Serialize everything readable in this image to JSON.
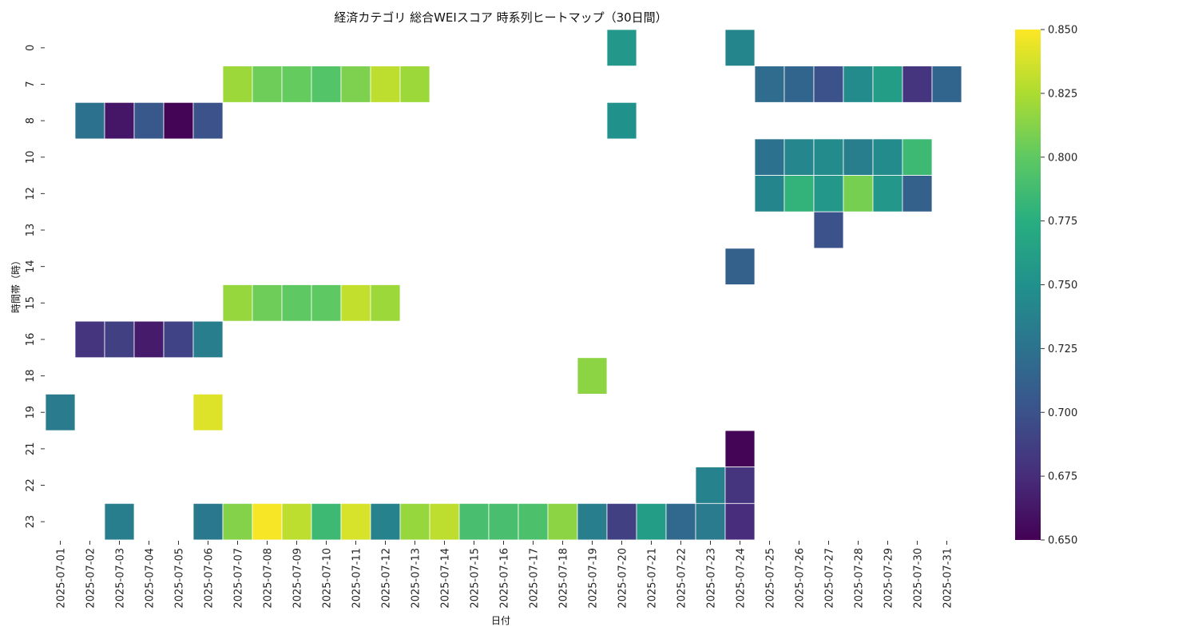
{
  "chart_data": {
    "type": "heatmap",
    "title": "経済カテゴリ 総合WEIスコア 時系列ヒートマップ（30日間）",
    "xlabel": "日付",
    "ylabel": "時間帯（時）",
    "colormap": "viridis",
    "colorbar": {
      "min": 0.65,
      "max": 0.85,
      "ticks": [
        "0.650",
        "0.675",
        "0.700",
        "0.725",
        "0.750",
        "0.775",
        "0.800",
        "0.825",
        "0.850"
      ]
    },
    "x": [
      "2025-07-01",
      "2025-07-02",
      "2025-07-03",
      "2025-07-04",
      "2025-07-05",
      "2025-07-06",
      "2025-07-07",
      "2025-07-08",
      "2025-07-09",
      "2025-07-10",
      "2025-07-11",
      "2025-07-12",
      "2025-07-13",
      "2025-07-14",
      "2025-07-15",
      "2025-07-16",
      "2025-07-17",
      "2025-07-18",
      "2025-07-19",
      "2025-07-20",
      "2025-07-21",
      "2025-07-22",
      "2025-07-23",
      "2025-07-24",
      "2025-07-25",
      "2025-07-26",
      "2025-07-27",
      "2025-07-28",
      "2025-07-29",
      "2025-07-30",
      "2025-07-31"
    ],
    "y": [
      "0",
      "7",
      "8",
      "10",
      "12",
      "13",
      "14",
      "15",
      "16",
      "18",
      "19",
      "21",
      "22",
      "23"
    ],
    "cells": [
      [
        "2025-07-20",
        "0",
        0.755
      ],
      [
        "2025-07-24",
        "0",
        0.74
      ],
      [
        "2025-07-07",
        "7",
        0.82
      ],
      [
        "2025-07-08",
        "7",
        0.805
      ],
      [
        "2025-07-09",
        "7",
        0.802
      ],
      [
        "2025-07-10",
        "7",
        0.795
      ],
      [
        "2025-07-11",
        "7",
        0.81
      ],
      [
        "2025-07-12",
        "7",
        0.83
      ],
      [
        "2025-07-13",
        "7",
        0.82
      ],
      [
        "2025-07-25",
        "7",
        0.72
      ],
      [
        "2025-07-26",
        "7",
        0.715
      ],
      [
        "2025-07-27",
        "7",
        0.7
      ],
      [
        "2025-07-28",
        "7",
        0.745
      ],
      [
        "2025-07-29",
        "7",
        0.76
      ],
      [
        "2025-07-30",
        "7",
        0.68
      ],
      [
        "2025-07-31",
        "7",
        0.715
      ],
      [
        "2025-07-02",
        "8",
        0.725
      ],
      [
        "2025-07-03",
        "8",
        0.662
      ],
      [
        "2025-07-04",
        "8",
        0.705
      ],
      [
        "2025-07-05",
        "8",
        0.652
      ],
      [
        "2025-07-06",
        "8",
        0.7
      ],
      [
        "2025-07-20",
        "8",
        0.75
      ],
      [
        "2025-07-25",
        "10",
        0.725
      ],
      [
        "2025-07-26",
        "10",
        0.742
      ],
      [
        "2025-07-27",
        "10",
        0.745
      ],
      [
        "2025-07-28",
        "10",
        0.735
      ],
      [
        "2025-07-29",
        "10",
        0.745
      ],
      [
        "2025-07-30",
        "10",
        0.785
      ],
      [
        "2025-07-25",
        "12",
        0.74
      ],
      [
        "2025-07-26",
        "12",
        0.78
      ],
      [
        "2025-07-27",
        "12",
        0.755
      ],
      [
        "2025-07-28",
        "12",
        0.808
      ],
      [
        "2025-07-29",
        "12",
        0.755
      ],
      [
        "2025-07-30",
        "12",
        0.712
      ],
      [
        "2025-07-27",
        "13",
        0.7
      ],
      [
        "2025-07-24",
        "14",
        0.712
      ],
      [
        "2025-07-07",
        "15",
        0.818
      ],
      [
        "2025-07-08",
        "15",
        0.805
      ],
      [
        "2025-07-09",
        "15",
        0.8
      ],
      [
        "2025-07-10",
        "15",
        0.8
      ],
      [
        "2025-07-11",
        "15",
        0.832
      ],
      [
        "2025-07-12",
        "15",
        0.82
      ],
      [
        "2025-07-02",
        "16",
        0.68
      ],
      [
        "2025-07-03",
        "16",
        0.688
      ],
      [
        "2025-07-04",
        "16",
        0.665
      ],
      [
        "2025-07-05",
        "16",
        0.69
      ],
      [
        "2025-07-06",
        "16",
        0.735
      ],
      [
        "2025-07-19",
        "18",
        0.815
      ],
      [
        "2025-07-01",
        "19",
        0.732
      ],
      [
        "2025-07-06",
        "19",
        0.84
      ],
      [
        "2025-07-24",
        "21",
        0.652
      ],
      [
        "2025-07-23",
        "22",
        0.738
      ],
      [
        "2025-07-24",
        "22",
        0.68
      ],
      [
        "2025-07-03",
        "23",
        0.735
      ],
      [
        "2025-07-06",
        "23",
        0.73
      ],
      [
        "2025-07-07",
        "23",
        0.812
      ],
      [
        "2025-07-08",
        "23",
        0.848
      ],
      [
        "2025-07-09",
        "23",
        0.83
      ],
      [
        "2025-07-10",
        "23",
        0.785
      ],
      [
        "2025-07-11",
        "23",
        0.838
      ],
      [
        "2025-07-12",
        "23",
        0.738
      ],
      [
        "2025-07-13",
        "23",
        0.818
      ],
      [
        "2025-07-14",
        "23",
        0.83
      ],
      [
        "2025-07-15",
        "23",
        0.79
      ],
      [
        "2025-07-16",
        "23",
        0.79
      ],
      [
        "2025-07-17",
        "23",
        0.792
      ],
      [
        "2025-07-18",
        "23",
        0.815
      ],
      [
        "2025-07-19",
        "23",
        0.735
      ],
      [
        "2025-07-20",
        "23",
        0.688
      ],
      [
        "2025-07-21",
        "23",
        0.76
      ],
      [
        "2025-07-22",
        "23",
        0.718
      ],
      [
        "2025-07-23",
        "23",
        0.732
      ],
      [
        "2025-07-24",
        "23",
        0.675
      ]
    ]
  }
}
